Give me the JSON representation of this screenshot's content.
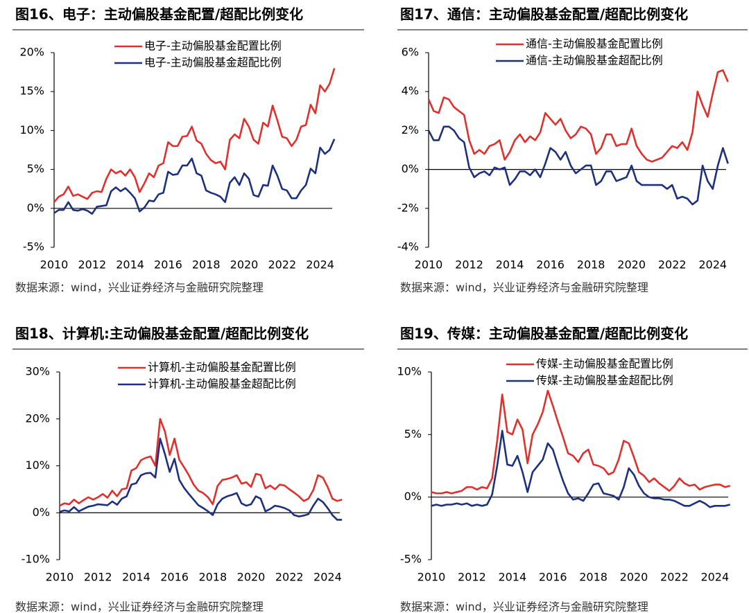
{
  "chart_data": [
    {
      "type": "line",
      "title": "图16、电子：主动偏股基金配置/超配比例变化",
      "source": "数据来源：wind，兴业证券经济与金融研究院整理",
      "x": [
        2010,
        2010.25,
        2010.5,
        2010.75,
        2011,
        2011.25,
        2011.5,
        2011.75,
        2012,
        2012.25,
        2012.5,
        2012.75,
        2013,
        2013.25,
        2013.5,
        2013.75,
        2014,
        2014.25,
        2014.5,
        2014.75,
        2015,
        2015.25,
        2015.5,
        2015.75,
        2016,
        2016.25,
        2016.5,
        2016.75,
        2017,
        2017.25,
        2017.5,
        2017.75,
        2018,
        2018.25,
        2018.5,
        2018.75,
        2019,
        2019.25,
        2019.5,
        2019.75,
        2020,
        2020.25,
        2020.5,
        2020.75,
        2021,
        2021.25,
        2021.5,
        2021.75,
        2022,
        2022.25,
        2022.5,
        2022.75,
        2023,
        2023.25,
        2023.5,
        2023.75,
        2024,
        2024.25,
        2024.5,
        2024.75
      ],
      "xlim": [
        2010,
        2025
      ],
      "xticks": [
        2010,
        2012,
        2014,
        2016,
        2018,
        2020,
        2022,
        2024
      ],
      "ylim": [
        -5,
        20
      ],
      "yticks": [
        {
          "value": -5,
          "label": "-5%"
        },
        {
          "value": 0,
          "label": "0%"
        },
        {
          "value": 5,
          "label": "5%"
        },
        {
          "value": 10,
          "label": "10%"
        },
        {
          "value": 15,
          "label": "15%"
        },
        {
          "value": 20,
          "label": "20%"
        }
      ],
      "legend": "upper center",
      "series": [
        {
          "name": "电子-主动偏股基金配置比例",
          "color": "#e0302b",
          "values": [
            0.8,
            1.5,
            1.8,
            2.8,
            1.6,
            1.8,
            1.5,
            1.2,
            2.0,
            2.2,
            2.1,
            3.8,
            5.0,
            4.5,
            4.8,
            4.2,
            5.0,
            4.0,
            2.1,
            3.2,
            4.5,
            4.0,
            5.5,
            5.8,
            8.5,
            8.0,
            8.0,
            9.2,
            9.3,
            10.5,
            8.7,
            8.3,
            7.0,
            6.2,
            5.8,
            6.0,
            5.0,
            8.8,
            9.5,
            9.0,
            11.5,
            10.5,
            8.8,
            8.3,
            11.0,
            10.5,
            13.2,
            11.3,
            9.2,
            9.0,
            8.0,
            8.8,
            10.5,
            10.7,
            13.3,
            12.2,
            15.8,
            15.0,
            16.0,
            18.0
          ]
        },
        {
          "name": "电子-主动偏股基金超配比例",
          "color": "#1c2f80",
          "values": [
            -0.6,
            -0.2,
            -0.2,
            0.8,
            -0.2,
            -0.3,
            -0.1,
            -0.3,
            -0.7,
            0.2,
            0.3,
            0.4,
            2.2,
            2.7,
            2.2,
            2.6,
            2.0,
            1.3,
            -0.4,
            0.1,
            1.0,
            0.9,
            1.8,
            2.0,
            4.7,
            4.3,
            4.4,
            5.5,
            5.5,
            6.4,
            4.5,
            4.2,
            2.3,
            2.0,
            1.8,
            1.5,
            0.8,
            3.3,
            4.0,
            3.0,
            4.5,
            3.8,
            1.7,
            1.5,
            3.0,
            2.9,
            5.5,
            4.2,
            2.5,
            2.3,
            1.3,
            1.3,
            2.3,
            3.0,
            5.1,
            4.5,
            7.8,
            7.0,
            7.5,
            8.9
          ]
        }
      ]
    },
    {
      "type": "line",
      "title": "图17、通信：主动偏股基金配置/超配比例变化",
      "source": "数据来源：wind，兴业证券经济与金融研究院整理",
      "x": [
        2010,
        2010.25,
        2010.5,
        2010.75,
        2011,
        2011.25,
        2011.5,
        2011.75,
        2012,
        2012.25,
        2012.5,
        2012.75,
        2013,
        2013.25,
        2013.5,
        2013.75,
        2014,
        2014.25,
        2014.5,
        2014.75,
        2015,
        2015.25,
        2015.5,
        2015.75,
        2016,
        2016.25,
        2016.5,
        2016.75,
        2017,
        2017.25,
        2017.5,
        2017.75,
        2018,
        2018.25,
        2018.5,
        2018.75,
        2019,
        2019.25,
        2019.5,
        2019.75,
        2020,
        2020.25,
        2020.5,
        2020.75,
        2021,
        2021.25,
        2021.5,
        2021.75,
        2022,
        2022.25,
        2022.5,
        2022.75,
        2023,
        2023.25,
        2023.5,
        2023.75,
        2024,
        2024.25,
        2024.5,
        2024.75
      ],
      "xlim": [
        2010,
        2025
      ],
      "xticks": [
        2010,
        2012,
        2014,
        2016,
        2018,
        2020,
        2022,
        2024
      ],
      "ylim": [
        -4,
        6
      ],
      "yticks": [
        {
          "value": -4,
          "label": "-4%"
        },
        {
          "value": -2,
          "label": "-2%"
        },
        {
          "value": 0,
          "label": "0%"
        },
        {
          "value": 2,
          "label": "2%"
        },
        {
          "value": 4,
          "label": "4%"
        },
        {
          "value": 6,
          "label": "6%"
        }
      ],
      "legend": "upper center",
      "series": [
        {
          "name": "通信-主动偏股基金配置比例",
          "color": "#e0302b",
          "values": [
            3.6,
            3.0,
            2.9,
            3.7,
            3.6,
            3.2,
            3.0,
            2.8,
            1.5,
            0.8,
            1.0,
            0.8,
            1.2,
            1.3,
            1.5,
            0.5,
            0.9,
            1.5,
            1.8,
            1.4,
            1.7,
            1.5,
            1.9,
            2.9,
            2.6,
            2.3,
            2.6,
            2.0,
            1.6,
            1.8,
            2.2,
            2.1,
            1.8,
            0.8,
            1.1,
            1.8,
            1.8,
            1.2,
            1.3,
            1.3,
            2.1,
            1.2,
            0.8,
            0.5,
            0.4,
            0.5,
            0.6,
            0.9,
            1.2,
            1.1,
            1.4,
            1.0,
            1.9,
            4.0,
            3.3,
            2.7,
            3.9,
            5.0,
            5.1,
            4.5
          ]
        },
        {
          "name": "通信-主动偏股基金超配比例",
          "color": "#1c2f80",
          "values": [
            2.0,
            1.5,
            1.5,
            2.2,
            2.2,
            2.0,
            1.6,
            1.4,
            0.1,
            -0.4,
            -0.2,
            -0.1,
            -0.3,
            0.1,
            0.0,
            0.1,
            -0.8,
            -0.5,
            -0.1,
            -0.1,
            -0.3,
            0.0,
            -0.4,
            0.3,
            1.1,
            0.9,
            0.5,
            0.9,
            0.2,
            -0.2,
            0.0,
            0.2,
            0.2,
            -0.8,
            -0.6,
            -0.1,
            -0.1,
            -0.6,
            -0.5,
            -0.4,
            0.2,
            -0.6,
            -0.8,
            -0.8,
            -0.8,
            -0.8,
            -0.8,
            -1.0,
            -0.8,
            -1.5,
            -1.4,
            -1.5,
            -1.8,
            -1.6,
            0.2,
            -0.6,
            -1.0,
            0.2,
            1.1,
            0.3
          ]
        }
      ]
    },
    {
      "type": "line",
      "title": "图18、计算机:主动偏股基金配置/超配比例变化",
      "source": "数据来源：wind，兴业证券经济与金融研究院整理",
      "x": [
        2010,
        2010.25,
        2010.5,
        2010.75,
        2011,
        2011.25,
        2011.5,
        2011.75,
        2012,
        2012.25,
        2012.5,
        2012.75,
        2013,
        2013.25,
        2013.5,
        2013.75,
        2014,
        2014.25,
        2014.5,
        2014.75,
        2015,
        2015.25,
        2015.5,
        2015.75,
        2016,
        2016.25,
        2016.5,
        2016.75,
        2017,
        2017.25,
        2017.5,
        2017.75,
        2018,
        2018.25,
        2018.5,
        2018.75,
        2019,
        2019.25,
        2019.5,
        2019.75,
        2020,
        2020.25,
        2020.5,
        2020.75,
        2021,
        2021.25,
        2021.5,
        2021.75,
        2022,
        2022.25,
        2022.5,
        2022.75,
        2023,
        2023.25,
        2023.5,
        2023.75,
        2024,
        2024.25,
        2024.5,
        2024.75
      ],
      "xlim": [
        2010,
        2025
      ],
      "xticks": [
        2010,
        2012,
        2014,
        2016,
        2018,
        2020,
        2022,
        2024
      ],
      "ylim": [
        -10,
        30
      ],
      "yticks": [
        {
          "value": -10,
          "label": "-10%"
        },
        {
          "value": 0,
          "label": "0%"
        },
        {
          "value": 10,
          "label": "10%"
        },
        {
          "value": 20,
          "label": "20%"
        },
        {
          "value": 30,
          "label": "30%"
        }
      ],
      "legend": "upper center",
      "series": [
        {
          "name": "计算机-主动偏股基金配置比例",
          "color": "#e0302b",
          "values": [
            1.5,
            2.0,
            1.8,
            2.8,
            2.0,
            2.7,
            3.3,
            2.8,
            3.3,
            4.0,
            3.2,
            4.7,
            3.5,
            5.0,
            5.2,
            9.0,
            9.5,
            11.2,
            11.7,
            12.0,
            10.0,
            20.0,
            17.3,
            12.3,
            15.8,
            11.3,
            9.7,
            8.0,
            6.0,
            4.7,
            4.2,
            3.3,
            1.8,
            5.7,
            7.0,
            7.2,
            7.5,
            8.0,
            6.2,
            6.5,
            5.5,
            8.3,
            8.0,
            5.2,
            5.8,
            5.0,
            6.0,
            5.8,
            5.0,
            4.3,
            3.5,
            2.5,
            3.0,
            4.8,
            8.0,
            7.5,
            5.5,
            3.0,
            2.5,
            2.8
          ]
        },
        {
          "name": "计算机-主动偏股基金超配比例",
          "color": "#1c2f80",
          "values": [
            0.2,
            0.5,
            0.3,
            1.2,
            0.3,
            0.8,
            1.3,
            1.5,
            1.8,
            1.7,
            1.6,
            2.4,
            1.7,
            3.0,
            3.5,
            6.0,
            6.3,
            8.0,
            8.4,
            8.5,
            7.5,
            15.8,
            12.5,
            8.7,
            11.5,
            7.0,
            5.3,
            4.0,
            2.8,
            1.6,
            1.0,
            0.3,
            -0.5,
            1.8,
            3.0,
            3.5,
            3.8,
            4.2,
            2.0,
            1.5,
            1.8,
            3.5,
            3.0,
            0.3,
            0.8,
            1.5,
            1.3,
            1.0,
            0.5,
            -0.5,
            -0.8,
            -0.6,
            -0.3,
            1.5,
            3.0,
            2.3,
            1.0,
            -0.5,
            -1.5,
            -1.5
          ]
        }
      ]
    },
    {
      "type": "line",
      "title": "图19、传媒：主动偏股基金配置/超配比例变化",
      "source": "数据来源：wind，兴业证券经济与金融研究院整理",
      "x": [
        2010,
        2010.25,
        2010.5,
        2010.75,
        2011,
        2011.25,
        2011.5,
        2011.75,
        2012,
        2012.25,
        2012.5,
        2012.75,
        2013,
        2013.25,
        2013.5,
        2013.75,
        2014,
        2014.25,
        2014.5,
        2014.75,
        2015,
        2015.25,
        2015.5,
        2015.75,
        2016,
        2016.25,
        2016.5,
        2016.75,
        2017,
        2017.25,
        2017.5,
        2017.75,
        2018,
        2018.25,
        2018.5,
        2018.75,
        2019,
        2019.25,
        2019.5,
        2019.75,
        2020,
        2020.25,
        2020.5,
        2020.75,
        2021,
        2021.25,
        2021.5,
        2021.75,
        2022,
        2022.25,
        2022.5,
        2022.75,
        2023,
        2023.25,
        2023.5,
        2023.75,
        2024,
        2024.25,
        2024.5,
        2024.75
      ],
      "xlim": [
        2010,
        2025
      ],
      "xticks": [
        2010,
        2012,
        2014,
        2016,
        2018,
        2020,
        2022,
        2024
      ],
      "ylim": [
        -5,
        10
      ],
      "yticks": [
        {
          "value": -5,
          "label": "-5%"
        },
        {
          "value": 0,
          "label": "0%"
        },
        {
          "value": 5,
          "label": "5%"
        },
        {
          "value": 10,
          "label": "10%"
        }
      ],
      "legend": "upper center",
      "series": [
        {
          "name": "传媒-主动偏股基金配置比例",
          "color": "#e0302b",
          "values": [
            0.4,
            0.3,
            0.3,
            0.4,
            0.3,
            0.4,
            0.5,
            0.8,
            0.8,
            0.6,
            0.8,
            0.7,
            1.5,
            4.5,
            8.2,
            5.2,
            5.0,
            6.2,
            5.4,
            2.7,
            5.0,
            5.8,
            6.8,
            8.5,
            7.3,
            6.0,
            4.8,
            3.5,
            3.3,
            2.8,
            3.5,
            3.8,
            2.6,
            2.5,
            2.3,
            1.8,
            2.0,
            3.0,
            4.5,
            4.3,
            3.2,
            2.0,
            1.7,
            1.2,
            1.5,
            1.1,
            0.8,
            0.5,
            0.9,
            1.5,
            1.1,
            0.9,
            1.0,
            0.6,
            0.8,
            0.9,
            1.0,
            1.0,
            0.8,
            0.9
          ]
        },
        {
          "name": "传媒-主动偏股基金超配比例",
          "color": "#1c2f80",
          "values": [
            -0.7,
            -0.6,
            -0.7,
            -0.6,
            -0.6,
            -0.5,
            -0.6,
            -0.5,
            -0.7,
            -0.6,
            -0.7,
            -0.6,
            0.2,
            2.5,
            5.3,
            2.6,
            2.5,
            3.3,
            2.0,
            0.4,
            2.0,
            2.5,
            3.0,
            4.3,
            3.8,
            2.5,
            1.3,
            0.3,
            -0.2,
            -0.1,
            -0.3,
            0.3,
            1.0,
            1.1,
            0.3,
            0.2,
            0.1,
            -0.2,
            0.8,
            2.3,
            1.8,
            0.9,
            0.3,
            0.0,
            -0.1,
            -0.1,
            -0.2,
            -0.2,
            -0.3,
            -0.5,
            -0.7,
            -0.7,
            -0.5,
            -0.3,
            -0.5,
            -0.8,
            -0.7,
            -0.7,
            -0.7,
            -0.6
          ]
        }
      ]
    }
  ]
}
